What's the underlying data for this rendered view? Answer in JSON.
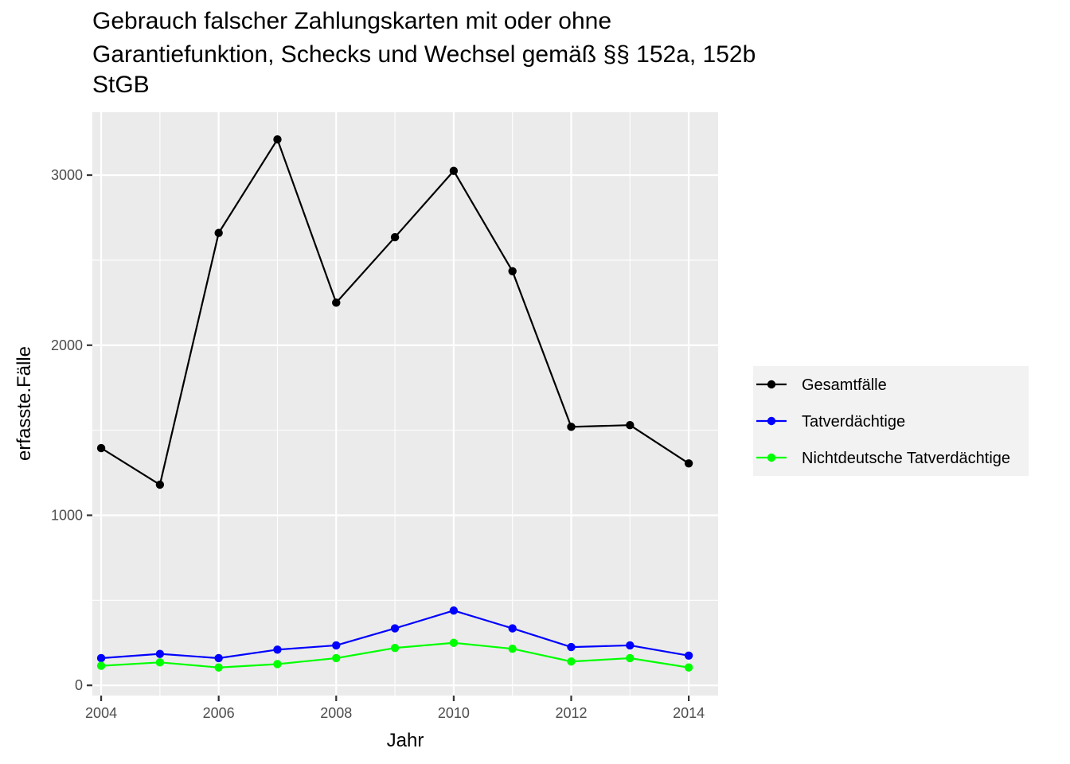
{
  "chart_data": {
    "type": "line",
    "title_lines": [
      "Gebrauch falscher Zahlungskarten mit oder ohne",
      "Garantiefunktion, Schecks und Wechsel gemäß §§ 152a, 152b",
      "StGB"
    ],
    "xlabel": "Jahr",
    "ylabel": "erfasste.Fälle",
    "x": [
      2004,
      2005,
      2006,
      2007,
      2008,
      2009,
      2010,
      2011,
      2012,
      2013,
      2014
    ],
    "xticks": [
      2004,
      2006,
      2008,
      2010,
      2012,
      2014
    ],
    "xtick_labels": [
      "2004",
      "2006",
      "2008",
      "2010",
      "2012",
      "2014"
    ],
    "yticks": [
      0,
      1000,
      2000,
      3000
    ],
    "ytick_labels": [
      "0",
      "1000",
      "2000",
      "3000"
    ],
    "xlim": [
      2003.85,
      2014.5
    ],
    "ylim": [
      -60,
      3370
    ],
    "grid": true,
    "legend_position": "right",
    "series": [
      {
        "name": "Gesamtfälle",
        "color": "#000000",
        "values": [
          1395,
          1180,
          2660,
          3210,
          2250,
          2635,
          3025,
          2435,
          1520,
          1530,
          1305
        ]
      },
      {
        "name": "Tatverdächtige",
        "color": "#0000ff",
        "values": [
          160,
          185,
          160,
          210,
          235,
          335,
          440,
          335,
          225,
          235,
          175
        ]
      },
      {
        "name": "Nichtdeutsche Tatverdächtige",
        "color": "#00ff00",
        "values": [
          115,
          135,
          105,
          125,
          160,
          220,
          250,
          215,
          140,
          160,
          105
        ]
      }
    ]
  }
}
